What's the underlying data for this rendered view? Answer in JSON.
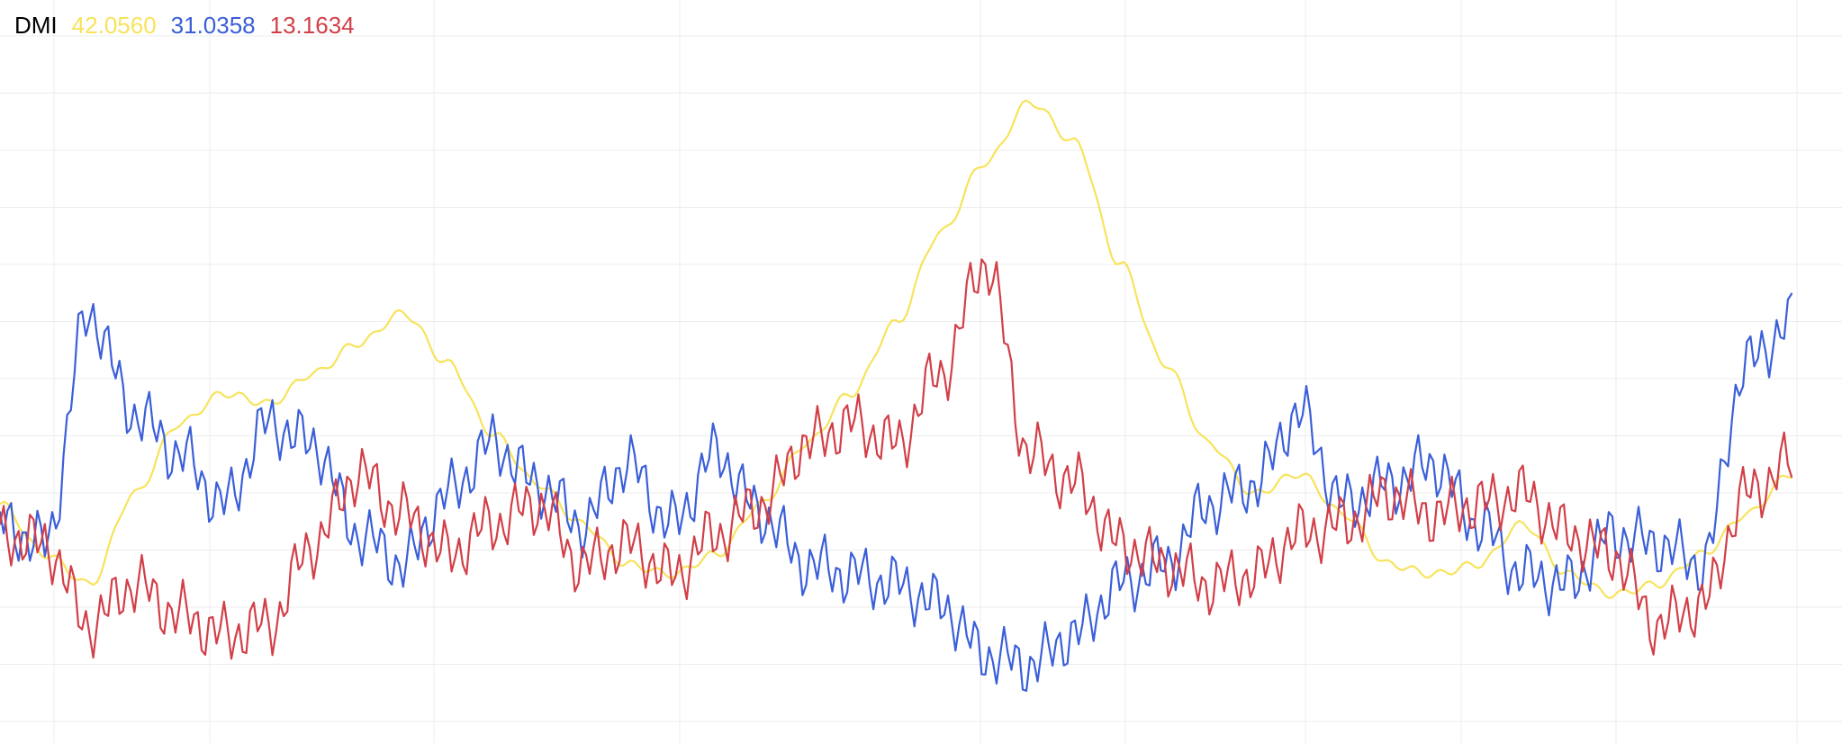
{
  "legend": {
    "indicator": "DMI",
    "values": [
      "42.0560",
      "31.0358",
      "13.1634"
    ]
  },
  "colors": {
    "adx": "#f7e35c",
    "plus_di": "#3b5fd9",
    "minus_di": "#d23f48",
    "grid": "#ececec"
  },
  "chart_data": {
    "type": "line",
    "title": "",
    "xlabel": "",
    "ylabel": "",
    "ylim": [
      0,
      65
    ],
    "grid": true,
    "legend_position": "top-left",
    "x": [
      0,
      10,
      20,
      30,
      40,
      50,
      60,
      70,
      80,
      90,
      100,
      110,
      120,
      130,
      140,
      150,
      160,
      170,
      180,
      190,
      200,
      210,
      220,
      230,
      240,
      250,
      260,
      270,
      280,
      290,
      300,
      310,
      320,
      330,
      340,
      350,
      360,
      370,
      380,
      390,
      400
    ],
    "series": [
      {
        "name": "42.0560",
        "color": "#f7e35c",
        "values": [
          22,
          17,
          14,
          23,
          30,
          33,
          32,
          35,
          38,
          41,
          36,
          29,
          24,
          20,
          16,
          15,
          17,
          22,
          28,
          33,
          40,
          49,
          56,
          62,
          58,
          46,
          36,
          28,
          23,
          25,
          21,
          16,
          15,
          16,
          20,
          15,
          13,
          14,
          17,
          21,
          25
        ]
      },
      {
        "name": "31.0358",
        "color": "#3b5fd9",
        "values": [
          20,
          18,
          41,
          31,
          27,
          22,
          30,
          28,
          19,
          16,
          23,
          28,
          24,
          20,
          26,
          20,
          27,
          21,
          16,
          15,
          14,
          12,
          7,
          6,
          9,
          14,
          16,
          22,
          24,
          31,
          22,
          24,
          26,
          20,
          15,
          14,
          19,
          18,
          16,
          36,
          40
        ]
      },
      {
        "name": "13.1634",
        "color": "#d23f48",
        "values": [
          19,
          18,
          10,
          14,
          11,
          9,
          10,
          18,
          25,
          21,
          17,
          20,
          22,
          16,
          18,
          15,
          19,
          22,
          28,
          30,
          28,
          35,
          46,
          27,
          24,
          18,
          16,
          14,
          15,
          19,
          20,
          23,
          21,
          22,
          23,
          19,
          17,
          10,
          12,
          23,
          26
        ]
      }
    ],
    "xlim": [
      0,
      400
    ]
  }
}
